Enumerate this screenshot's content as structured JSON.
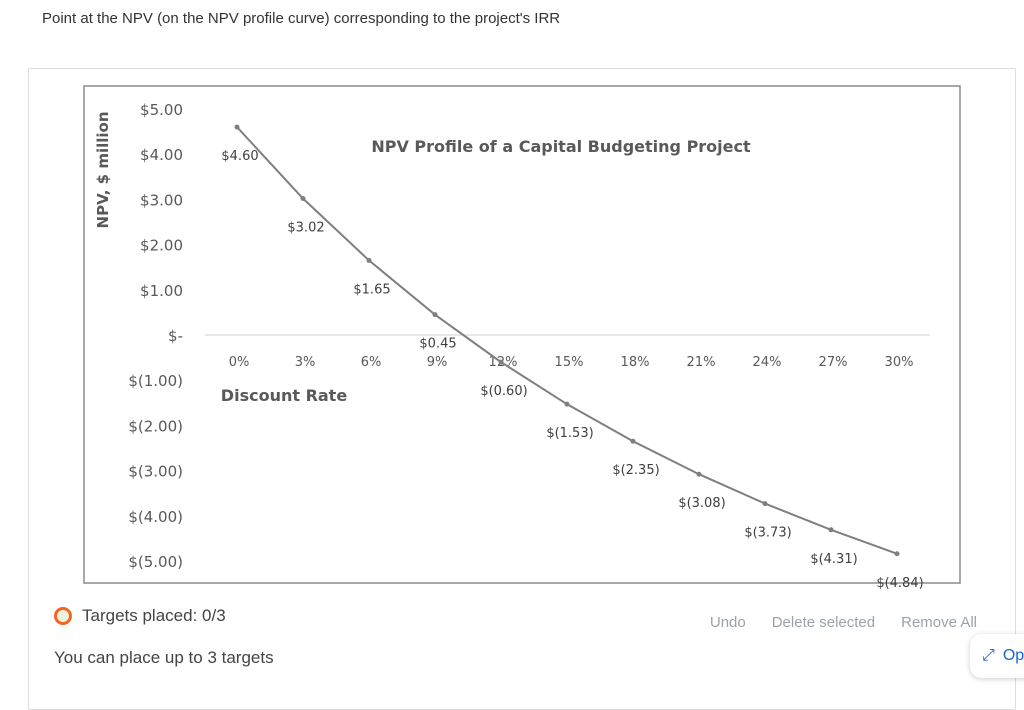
{
  "prompt": "Point at the NPV (on the NPV profile curve) corresponding to the project's IRR",
  "chart_data": {
    "type": "line",
    "title": "NPV Profile of a Capital Budgeting Project",
    "xlabel": "Discount Rate",
    "ylabel": "NPV, $ million",
    "x": [
      "0%",
      "3%",
      "6%",
      "9%",
      "12%",
      "15%",
      "18%",
      "21%",
      "24%",
      "27%",
      "30%"
    ],
    "x_values": [
      0,
      3,
      6,
      9,
      12,
      15,
      18,
      21,
      24,
      27,
      30
    ],
    "values": [
      4.6,
      3.02,
      1.65,
      0.45,
      -0.6,
      -1.53,
      -2.35,
      -3.08,
      -3.73,
      -4.31,
      -4.84
    ],
    "data_labels": [
      "$4.60",
      "$3.02",
      "$1.65",
      "$0.45",
      "$(0.60)",
      "$(1.53)",
      "$(2.35)",
      "$(3.08)",
      "$(3.73)",
      "$(4.31)",
      "$(4.84)"
    ],
    "y_ticks": [
      5,
      4,
      3,
      2,
      1,
      0,
      -1,
      -2,
      -3,
      -4,
      -5
    ],
    "y_tick_labels": [
      "$5.00",
      "$4.00",
      "$3.00",
      "$2.00",
      "$1.00",
      "$-",
      "$(1.00)",
      "$(2.00)",
      "$(3.00)",
      "$(4.00)",
      "$(5.00)"
    ],
    "ylim": [
      -5,
      5
    ],
    "grid": false,
    "line_color": "#7f7f7f"
  },
  "status": {
    "targets_placed": "Targets placed: 0/3",
    "hint": "You can place up to 3 targets"
  },
  "actions": {
    "undo": "Undo",
    "delete_selected": "Delete selected",
    "remove_all": "Remove All"
  },
  "open_button": "Op"
}
